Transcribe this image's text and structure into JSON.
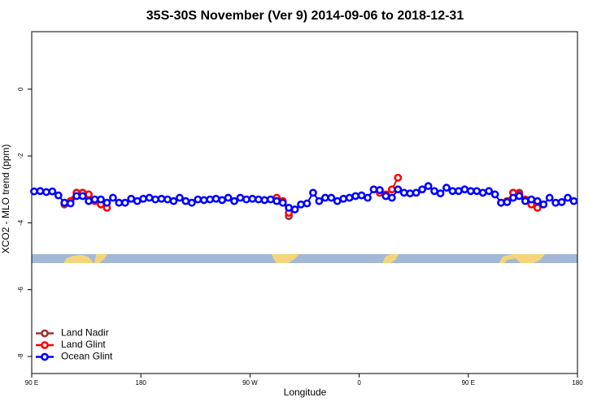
{
  "chart_data": {
    "type": "line",
    "title": "35S-30S November (Ver 9)   2014-09-06 to 2018-12-31",
    "x_label": "Longitude",
    "y_label": "XCO2 - MLO trend (ppm)",
    "xlim": [
      90,
      540
    ],
    "ylim": [
      -8.51,
      1.72
    ],
    "xticks": [
      {
        "value": 90,
        "label": "90 E"
      },
      180,
      {
        "value": 270,
        "label": "90 W"
      },
      {
        "value": 360,
        "label": "0"
      },
      {
        "value": 450,
        "label": "90 E"
      },
      {
        "value": 540,
        "label": "180"
      }
    ],
    "yticks": [
      0,
      -2,
      -4,
      -6,
      -8
    ],
    "legend": "bottom-left",
    "series": [
      {
        "name": "Land Nadir",
        "color": "#993333",
        "x": [
          117,
          127,
          132,
          null,
          302,
          null,
          487,
          492
        ],
        "values": [
          -3.45,
          -3.1,
          -3.1,
          null,
          -3.8,
          null,
          -3.1,
          -3.1
        ]
      },
      {
        "name": "Land Glint",
        "color": "#ff0000",
        "x": [
          117,
          122,
          127,
          132,
          137,
          142,
          147,
          152,
          null,
          292,
          297,
          302,
          null,
          377,
          382,
          387,
          392,
          null,
          477,
          482,
          487,
          492,
          497,
          502,
          507
        ],
        "values": [
          -3.4,
          -3.35,
          -3.1,
          -3.1,
          -3.15,
          -3.35,
          -3.45,
          -3.55,
          null,
          -3.25,
          -3.35,
          -3.7,
          null,
          -3.1,
          -3.15,
          -3.0,
          -2.65,
          null,
          -3.4,
          -3.35,
          -3.1,
          -3.15,
          -3.3,
          -3.45,
          -3.55
        ]
      },
      {
        "name": "Ocean Glint",
        "color": "#0000ff",
        "x": [
          92,
          97,
          102,
          107,
          112,
          117,
          122,
          127,
          132,
          137,
          142,
          147,
          152,
          157,
          162,
          167,
          172,
          177,
          182,
          187,
          192,
          197,
          202,
          207,
          212,
          217,
          222,
          227,
          232,
          237,
          242,
          247,
          252,
          257,
          262,
          267,
          272,
          277,
          282,
          287,
          292,
          297,
          302,
          307,
          312,
          317,
          322,
          327,
          332,
          337,
          342,
          347,
          352,
          357,
          362,
          367,
          372,
          377,
          382,
          387,
          392,
          397,
          402,
          407,
          412,
          417,
          422,
          427,
          432,
          437,
          442,
          447,
          452,
          457,
          462,
          467,
          472,
          477,
          482,
          487,
          492,
          497,
          502,
          507,
          512,
          517,
          522,
          527,
          532,
          537
        ],
        "values": [
          -3.06,
          -3.05,
          -3.08,
          -3.06,
          -3.18,
          -3.4,
          -3.42,
          -3.2,
          -3.2,
          -3.35,
          -3.3,
          -3.3,
          -3.4,
          -3.25,
          -3.4,
          -3.4,
          -3.28,
          -3.35,
          -3.28,
          -3.25,
          -3.3,
          -3.28,
          -3.3,
          -3.35,
          -3.25,
          -3.35,
          -3.4,
          -3.3,
          -3.32,
          -3.3,
          -3.28,
          -3.32,
          -3.25,
          -3.35,
          -3.25,
          -3.3,
          -3.28,
          -3.3,
          -3.32,
          -3.3,
          -3.35,
          -3.4,
          -3.55,
          -3.6,
          -3.45,
          -3.42,
          -3.1,
          -3.35,
          -3.25,
          -3.25,
          -3.35,
          -3.28,
          -3.25,
          -3.2,
          -3.18,
          -3.25,
          -3.0,
          -3.02,
          -3.2,
          -3.25,
          -3.0,
          -3.1,
          -3.12,
          -3.1,
          -3.0,
          -2.9,
          -3.05,
          -3.12,
          -2.95,
          -3.05,
          -3.05,
          -3.0,
          -3.05,
          -3.05,
          -3.1,
          -3.05,
          -3.15,
          -3.4,
          -3.38,
          -3.25,
          -3.2,
          -3.35,
          -3.3,
          -3.35,
          -3.45,
          -3.25,
          -3.4,
          -3.38,
          -3.25,
          -3.35
        ]
      }
    ]
  }
}
